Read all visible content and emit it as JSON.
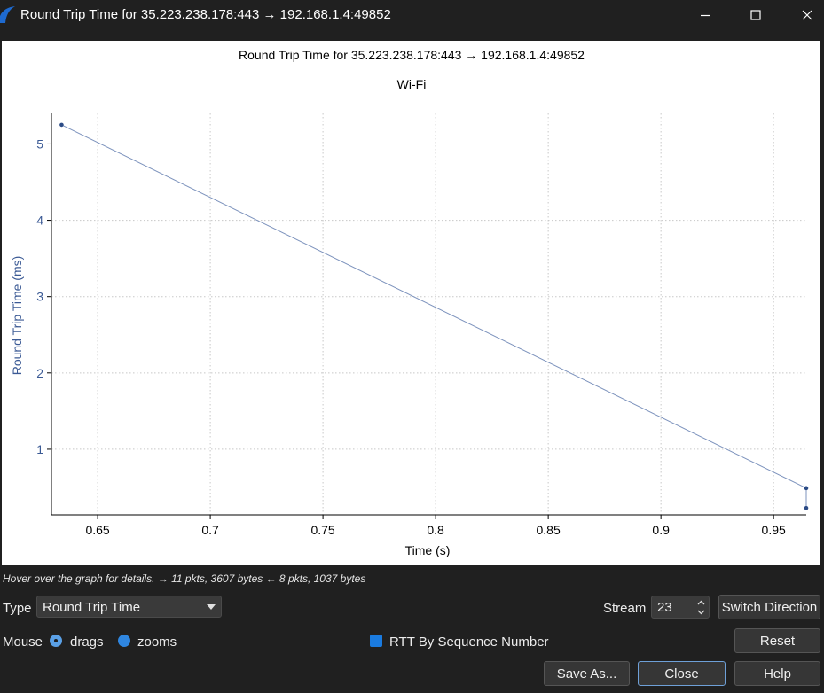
{
  "window": {
    "title": "Round Trip Time for 35.223.238.178:443 → 192.168.1.4:49852"
  },
  "chart_data": {
    "type": "line",
    "title": "Round Trip Time for 35.223.238.178:443 → 192.168.1.4:49852",
    "subtitle": "Wi-Fi",
    "xlabel": "Time (s)",
    "ylabel": "Round Trip Time (ms)",
    "xlim": [
      0.6295,
      0.9645
    ],
    "ylim": [
      0.14,
      5.4
    ],
    "xticks": [
      0.65,
      0.7,
      0.75,
      0.8,
      0.85,
      0.9,
      0.95
    ],
    "xtick_labels": [
      "0.65",
      "0.7",
      "0.75",
      "0.8",
      "0.85",
      "0.9",
      "0.95"
    ],
    "yticks": [
      1,
      2,
      3,
      4,
      5
    ],
    "ytick_labels": [
      "1",
      "2",
      "3",
      "4",
      "5"
    ],
    "grid": true,
    "series": [
      {
        "x": [
          0.634,
          0.9645,
          0.9645
        ],
        "y": [
          5.25,
          0.49,
          0.23
        ]
      }
    ]
  },
  "hint": "Hover over the graph for details. → 11 pkts, 3607 bytes ← 8 pkts, 1037 bytes",
  "controls": {
    "type_label": "Type",
    "type_value": "Round Trip Time",
    "stream_label": "Stream",
    "stream_value": "23",
    "switch_direction": "Switch Direction",
    "mouse_label": "Mouse",
    "drags_label": "drags",
    "zooms_label": "zooms",
    "rtt_by_seq": "RTT By Sequence Number",
    "reset": "Reset",
    "save_as": "Save As...",
    "close": "Close",
    "help": "Help"
  },
  "colors": {
    "line": "#7d93bd",
    "point": "#2b4b86",
    "axis_text": "#3b5a95",
    "accent": "#1a7be0"
  }
}
